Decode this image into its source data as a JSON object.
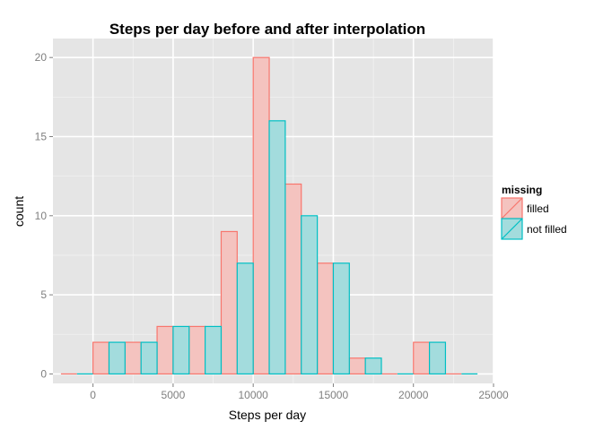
{
  "chart_data": {
    "type": "bar",
    "title": "Steps per day before and after interpolation",
    "xlabel": "Steps per day",
    "ylabel": "count",
    "xlim": [
      -2500,
      25000
    ],
    "ylim": [
      -0.6,
      21.2
    ],
    "x_ticks": [
      0,
      5000,
      10000,
      15000,
      20000,
      25000
    ],
    "y_ticks": [
      0,
      5,
      10,
      15,
      20
    ],
    "bin_width": 2000,
    "bin_starts": [
      -2000,
      0,
      2000,
      4000,
      6000,
      8000,
      10000,
      12000,
      14000,
      16000,
      18000,
      20000,
      22000
    ],
    "grid": true,
    "legend_position": "right",
    "legend_title": "missing",
    "series": [
      {
        "name": "filled",
        "color": "#F8766D",
        "fill": "#F4C3BF",
        "values": [
          0,
          2,
          2,
          3,
          3,
          9,
          20,
          12,
          7,
          1,
          0,
          2,
          0
        ]
      },
      {
        "name": "not filled",
        "color": "#00BFC4",
        "fill": "#A3DCDD",
        "values": [
          0,
          2,
          2,
          3,
          3,
          7,
          16,
          10,
          7,
          1,
          0,
          2,
          0
        ]
      }
    ]
  }
}
